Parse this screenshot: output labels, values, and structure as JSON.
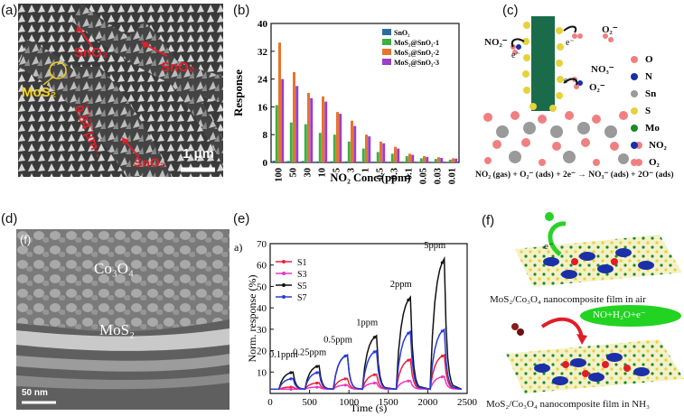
{
  "panel_a": {
    "label": "(a)",
    "annotations": [
      "SnO₂",
      "SnO₂",
      "SnO₂",
      "MoS₂",
      "0.84 μm"
    ],
    "scalebar": "1 μm"
  },
  "panel_b": {
    "label": "(b)"
  },
  "panel_c": {
    "label": "(c)",
    "legend": [
      {
        "symbol": "O",
        "color": "#f08080"
      },
      {
        "symbol": "N",
        "color": "#1a2fa8"
      },
      {
        "symbol": "Sn",
        "color": "#9a9a9a"
      },
      {
        "symbol": "S",
        "color": "#e6d23a"
      },
      {
        "symbol": "Mo",
        "color": "#1a8a2a"
      },
      {
        "symbol": "NO₂",
        "color": "#1a2fa8"
      },
      {
        "symbol": "O₂",
        "color": "#f08080"
      }
    ],
    "species": [
      "NO₂⁻",
      "O₂⁻",
      "NO₃⁻",
      "O₂⁻",
      "e⁻",
      "e⁻",
      "e⁻"
    ],
    "equation": "NO₂ (gas) + O₂⁻ (ads) + 2e⁻ → NO₃⁻ (ads) + 2O⁻ (ads)"
  },
  "panel_d": {
    "label": "(d)",
    "inner_label": "(f)",
    "annotations": [
      "Co₃O₄",
      "MoS₂"
    ],
    "scalebar": "50 nm"
  },
  "panel_e": {
    "label": "(e)"
  },
  "panel_f": {
    "label": "(f)",
    "captions": [
      "MoS₂/Co₃O₄ nanocomposite film in air",
      "MoS₂/Co₃O₄ nanocomposite film in NH₃"
    ],
    "electron": "e⁻",
    "product": "NO+H₂O+e⁻"
  },
  "chart_data": [
    {
      "type": "bar",
      "title": "",
      "xlabel": "NO₂ Conc.(ppm)",
      "ylabel": "Response",
      "ylim": [
        0,
        40
      ],
      "yticks": [
        0,
        8,
        16,
        24,
        32,
        40
      ],
      "categories": [
        "100",
        "50",
        "30",
        "10",
        "5",
        "3",
        "1",
        "0.5",
        "0.3",
        "0.1",
        "0.05",
        "0.03",
        "0.01"
      ],
      "series": [
        {
          "name": "SnO₂",
          "color": "#2e6b9e",
          "values": [
            0.5,
            0.4,
            0.4,
            0.3,
            0.3,
            0.3,
            0.2,
            0.2,
            0.2,
            0.2,
            0.1,
            0.1,
            0.1
          ]
        },
        {
          "name": "MoS₂@SnO₂-1",
          "color": "#3cb043",
          "values": [
            16.5,
            11.5,
            11,
            8.5,
            8,
            6,
            4,
            3,
            2.5,
            1.8,
            1.2,
            1,
            0.8
          ]
        },
        {
          "name": "MoS₂@SnO₂-2",
          "color": "#e8742c",
          "values": [
            34.5,
            26,
            20,
            19,
            14.5,
            12,
            8,
            6,
            4.5,
            2.5,
            1.8,
            1.5,
            1.2
          ]
        },
        {
          "name": "MoS₂@SnO₂-3",
          "color": "#9b3fc8",
          "values": [
            24,
            22,
            18.5,
            17.5,
            14,
            10.5,
            7.5,
            5.5,
            4,
            2.2,
            1.6,
            1.3,
            1.1
          ]
        }
      ],
      "legend_position": "top-right",
      "grid": false
    },
    {
      "type": "line",
      "panel_inner_label": "a)",
      "xlabel": "Time (s)",
      "ylabel": "Norm. response (%)",
      "xlim": [
        0,
        2500
      ],
      "ylim": [
        0,
        70
      ],
      "xticks": [
        0,
        500,
        1000,
        1500,
        2000,
        2500
      ],
      "yticks": [
        10,
        20,
        30,
        40,
        50,
        60,
        70
      ],
      "pulse_starts": [
        110,
        440,
        800,
        1170,
        1600,
        2030
      ],
      "pulse_width": 180,
      "annotations": [
        "0.1ppm",
        "0.25ppm",
        "0.5ppm",
        "1ppm",
        "2ppm",
        "5ppm"
      ],
      "series": [
        {
          "name": "S1",
          "color": "#e8213a",
          "peaks": [
            3,
            5,
            7,
            9,
            16,
            18
          ]
        },
        {
          "name": "S3",
          "color": "#e636c8",
          "peaks": [
            2,
            3,
            4,
            5,
            6,
            8
          ]
        },
        {
          "name": "S5",
          "color": "#111111",
          "peaks": [
            10,
            13,
            18,
            27,
            45,
            63
          ]
        },
        {
          "name": "S7",
          "color": "#2a3bd8",
          "peaks": [
            7,
            10,
            18,
            20,
            29,
            30
          ]
        }
      ],
      "legend_position": "top-left",
      "grid": false
    }
  ]
}
